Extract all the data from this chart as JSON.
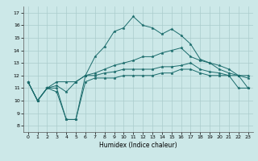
{
  "title": "",
  "xlabel": "Humidex (Indice chaleur)",
  "background_color": "#cce8e8",
  "grid_color": "#aacccc",
  "line_color": "#1a6b6b",
  "x_ticks": [
    0,
    1,
    2,
    3,
    4,
    5,
    6,
    7,
    8,
    9,
    10,
    11,
    12,
    13,
    14,
    15,
    16,
    17,
    18,
    19,
    20,
    21,
    22,
    23
  ],
  "y_ticks": [
    8,
    9,
    10,
    11,
    12,
    13,
    14,
    15,
    16,
    17
  ],
  "ylim": [
    7.5,
    17.5
  ],
  "xlim": [
    -0.5,
    23.5
  ],
  "s1": [
    11.5,
    10.0,
    11.0,
    10.7,
    8.5,
    8.5,
    11.5,
    11.8,
    11.8,
    11.8,
    12.0,
    12.0,
    12.0,
    12.0,
    12.2,
    12.2,
    12.5,
    12.5,
    12.2,
    12.0,
    12.0,
    12.0,
    11.0,
    11.0
  ],
  "s2": [
    11.5,
    10.0,
    11.0,
    11.5,
    11.5,
    11.5,
    12.0,
    12.0,
    12.2,
    12.3,
    12.5,
    12.5,
    12.5,
    12.5,
    12.7,
    12.7,
    12.8,
    13.0,
    12.5,
    12.3,
    12.2,
    12.0,
    12.0,
    11.8
  ],
  "s3": [
    11.5,
    10.0,
    11.0,
    11.2,
    10.7,
    11.5,
    12.0,
    12.2,
    12.5,
    12.8,
    13.0,
    13.2,
    13.5,
    13.5,
    13.8,
    14.0,
    14.2,
    13.5,
    13.2,
    13.0,
    12.5,
    12.2,
    12.0,
    12.0
  ],
  "s4": [
    11.5,
    10.0,
    11.0,
    11.0,
    8.5,
    8.5,
    12.0,
    13.5,
    14.3,
    15.5,
    15.8,
    16.7,
    16.0,
    15.8,
    15.3,
    15.7,
    15.2,
    14.5,
    13.3,
    13.0,
    12.8,
    12.5,
    12.0,
    11.0
  ]
}
